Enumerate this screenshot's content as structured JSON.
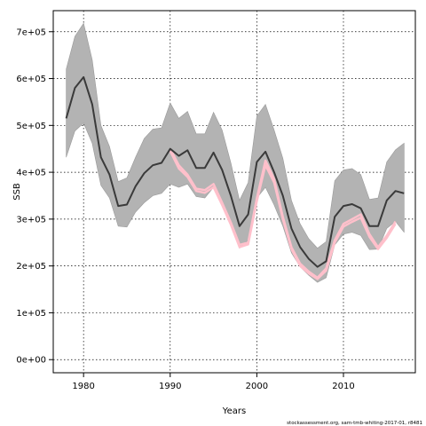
{
  "chart_data": {
    "type": "line",
    "title": "",
    "xlabel": "Years",
    "ylabel": "SSB",
    "xlim": [
      1976.5,
      2018.3
    ],
    "ylim": [
      -28000,
      745000
    ],
    "grid": true,
    "legend": "none",
    "x_ticks": [
      1980,
      1990,
      2000,
      2010
    ],
    "x_tick_labels": [
      "1980",
      "1990",
      "2000",
      "2010"
    ],
    "y_ticks": [
      0,
      100000,
      200000,
      300000,
      400000,
      500000,
      600000,
      700000
    ],
    "y_tick_labels": [
      "0e+00",
      "1e+05",
      "2e+05",
      "3e+05",
      "4e+05",
      "5e+05",
      "6e+05",
      "7e+05"
    ],
    "credit": "stockassessment.org, sam-tmb-whiting-2017-01, r8481",
    "colors": {
      "band": "#b3b3b3",
      "line": "#3a3a3a",
      "retro": "#ffc0cb"
    },
    "series": [
      {
        "role": "estimate",
        "x": [
          1978,
          1979,
          1980,
          1981,
          1982,
          1983,
          1984,
          1985,
          1986,
          1987,
          1988,
          1989,
          1990,
          1991,
          1992,
          1993,
          1994,
          1995,
          1996,
          1997,
          1998,
          1999,
          2000,
          2001,
          2002,
          2003,
          2004,
          2005,
          2006,
          2007,
          2008,
          2009,
          2010,
          2011,
          2012,
          2013,
          2014,
          2015,
          2016,
          2017
        ],
        "y": [
          515000,
          580000,
          603000,
          545000,
          432000,
          395000,
          328000,
          331000,
          370000,
          398000,
          415000,
          420000,
          450000,
          435000,
          447000,
          409000,
          409000,
          442000,
          405000,
          350000,
          285000,
          310000,
          422000,
          444000,
          400000,
          350000,
          280000,
          240000,
          215000,
          198000,
          210000,
          305000,
          328000,
          332000,
          323000,
          285000,
          285000,
          340000,
          360000,
          355000
        ]
      },
      {
        "role": "confidence-band",
        "x": [
          1978,
          1979,
          1980,
          1981,
          1982,
          1983,
          1984,
          1985,
          1986,
          1987,
          1988,
          1989,
          1990,
          1991,
          1992,
          1993,
          1994,
          1995,
          1996,
          1997,
          1998,
          1999,
          2000,
          2001,
          2002,
          2003,
          2004,
          2005,
          2006,
          2007,
          2008,
          2009,
          2010,
          2011,
          2012,
          2013,
          2014,
          2015,
          2016,
          2017
        ],
        "upper": [
          620000,
          690000,
          718000,
          640000,
          500000,
          455000,
          380000,
          388000,
          432000,
          472000,
          492000,
          495000,
          548000,
          515000,
          530000,
          482000,
          482000,
          528000,
          490000,
          420000,
          340000,
          378000,
          520000,
          545000,
          490000,
          430000,
          340000,
          290000,
          258000,
          238000,
          252000,
          382000,
          405000,
          408000,
          395000,
          342000,
          345000,
          422000,
          448000,
          462000
        ],
        "lower": [
          432000,
          488000,
          505000,
          462000,
          372000,
          345000,
          285000,
          283000,
          315000,
          335000,
          350000,
          355000,
          375000,
          368000,
          375000,
          348000,
          345000,
          368000,
          330000,
          290000,
          238000,
          255000,
          345000,
          368000,
          330000,
          285000,
          228000,
          198000,
          180000,
          165000,
          175000,
          245000,
          268000,
          272000,
          265000,
          235000,
          236000,
          280000,
          295000,
          272000
        ]
      },
      {
        "role": "retrospective",
        "x": [
          1990,
          1991,
          1992,
          1993,
          1994,
          1995,
          1996,
          1997,
          1998,
          1999,
          2000,
          2001,
          2002,
          2003,
          2004,
          2005,
          2006,
          2007,
          2008,
          2009,
          2010,
          2011,
          2012,
          2013,
          2014,
          2015,
          2016
        ],
        "y": [
          450000,
          415000,
          395000,
          365000,
          362000,
          375000,
          335000,
          293000,
          245000,
          250000,
          345000,
          425000,
          385000,
          305000,
          240000,
          205000,
          188000,
          175000,
          195000,
          255000,
          290000,
          300000,
          310000,
          268000,
          240000,
          265000,
          295000
        ]
      },
      {
        "role": "retrospective",
        "x": [
          1990,
          1991,
          1992,
          1993,
          1994,
          1995,
          1996,
          1997,
          1998,
          1999,
          2000,
          2001,
          2002,
          2003,
          2004,
          2005,
          2006,
          2007,
          2008,
          2009,
          2010,
          2011,
          2012,
          2013,
          2014,
          2015,
          2016
        ],
        "y": [
          445000,
          408000,
          390000,
          360000,
          356000,
          368000,
          330000,
          288000,
          240000,
          246000,
          338000,
          415000,
          378000,
          300000,
          236000,
          200000,
          184000,
          172000,
          190000,
          250000,
          284000,
          294000,
          303000,
          262000,
          236000,
          260000,
          290000
        ]
      }
    ]
  }
}
